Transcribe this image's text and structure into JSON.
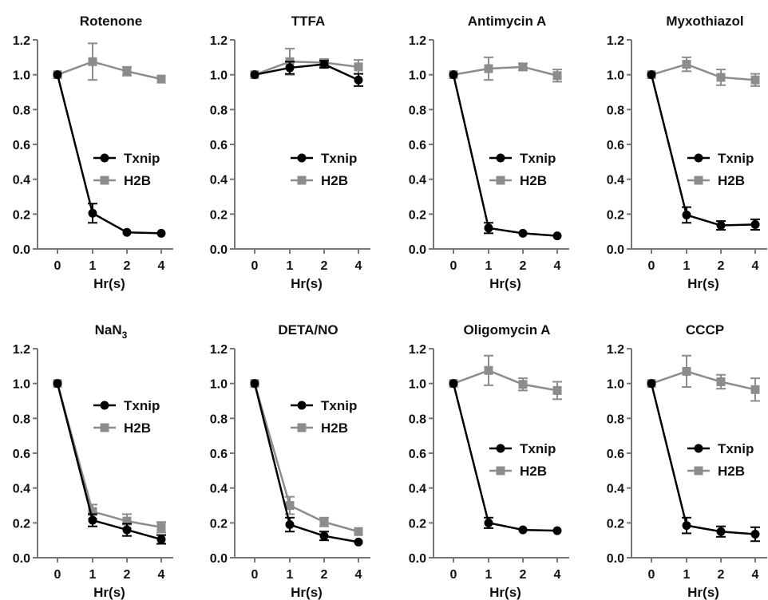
{
  "colors": {
    "txnip": "#000000",
    "h2b": "#8c8c8c",
    "axis": "#777777",
    "text": "#111111"
  },
  "chart_data": [
    {
      "type": "line",
      "title": "Rotenone",
      "title_sub": "",
      "categories": [
        "0",
        "1",
        "2",
        "4"
      ],
      "xlabel": "Hr(s)",
      "ylabel": "",
      "ylim": [
        0,
        1.2
      ],
      "yticks": [
        "0.0",
        "0.2",
        "0.4",
        "0.6",
        "0.8",
        "1.0",
        "1.2"
      ],
      "legend": "middle-right",
      "series": [
        {
          "name": "Txnip",
          "color": "#000000",
          "marker": "circle",
          "values": [
            1.0,
            0.205,
            0.095,
            0.09
          ],
          "errors": [
            0,
            0.055,
            0,
            0
          ]
        },
        {
          "name": "H2B",
          "color": "#8c8c8c",
          "marker": "square",
          "values": [
            1.0,
            1.075,
            1.02,
            0.975
          ],
          "errors": [
            0,
            0.105,
            0.025,
            0
          ]
        }
      ]
    },
    {
      "type": "line",
      "title": "TTFA",
      "title_sub": "",
      "categories": [
        "0",
        "1",
        "2",
        "4"
      ],
      "xlabel": "Hr(s)",
      "ylabel": "",
      "ylim": [
        0,
        1.2
      ],
      "yticks": [
        "0.0",
        "0.2",
        "0.4",
        "0.6",
        "0.8",
        "1.0",
        "1.2"
      ],
      "legend": "middle-right",
      "series": [
        {
          "name": "Txnip",
          "color": "#000000",
          "marker": "circle",
          "values": [
            1.0,
            1.04,
            1.06,
            0.97
          ],
          "errors": [
            0,
            0.035,
            0.02,
            0.035
          ]
        },
        {
          "name": "H2B",
          "color": "#8c8c8c",
          "marker": "square",
          "values": [
            1.0,
            1.075,
            1.07,
            1.045
          ],
          "errors": [
            0,
            0.075,
            0.02,
            0.04
          ]
        }
      ]
    },
    {
      "type": "line",
      "title": "Antimycin A",
      "title_sub": "",
      "categories": [
        "0",
        "1",
        "2",
        "4"
      ],
      "xlabel": "Hr(s)",
      "ylabel": "",
      "ylim": [
        0,
        1.2
      ],
      "yticks": [
        "0.0",
        "0.2",
        "0.4",
        "0.6",
        "0.8",
        "1.0",
        "1.2"
      ],
      "legend": "middle-right",
      "series": [
        {
          "name": "Txnip",
          "color": "#000000",
          "marker": "circle",
          "values": [
            1.0,
            0.12,
            0.09,
            0.075
          ],
          "errors": [
            0,
            0.03,
            0,
            0
          ]
        },
        {
          "name": "H2B",
          "color": "#8c8c8c",
          "marker": "square",
          "values": [
            1.0,
            1.035,
            1.045,
            0.995
          ],
          "errors": [
            0,
            0.065,
            0.02,
            0.035
          ]
        }
      ]
    },
    {
      "type": "line",
      "title": "Myxothiazol",
      "title_sub": "",
      "categories": [
        "0",
        "1",
        "2",
        "4"
      ],
      "xlabel": "Hr(s)",
      "ylabel": "",
      "ylim": [
        0,
        1.2
      ],
      "yticks": [
        "0.0",
        "0.2",
        "0.4",
        "0.6",
        "0.8",
        "1.0",
        "1.2"
      ],
      "legend": "middle-right",
      "series": [
        {
          "name": "Txnip",
          "color": "#000000",
          "marker": "circle",
          "values": [
            1.0,
            0.195,
            0.135,
            0.14
          ],
          "errors": [
            0,
            0.045,
            0.025,
            0.03
          ]
        },
        {
          "name": "H2B",
          "color": "#8c8c8c",
          "marker": "square",
          "values": [
            1.0,
            1.06,
            0.985,
            0.97
          ],
          "errors": [
            0,
            0.04,
            0.045,
            0.035
          ]
        }
      ]
    },
    {
      "type": "line",
      "title": "NaN",
      "title_sub": "3",
      "categories": [
        "0",
        "1",
        "2",
        "4"
      ],
      "xlabel": "Hr(s)",
      "ylabel": "",
      "ylim": [
        0,
        1.2
      ],
      "yticks": [
        "0.0",
        "0.2",
        "0.4",
        "0.6",
        "0.8",
        "1.0",
        "1.2"
      ],
      "legend": "upper-right",
      "series": [
        {
          "name": "Txnip",
          "color": "#000000",
          "marker": "circle",
          "values": [
            1.0,
            0.215,
            0.16,
            0.105
          ],
          "errors": [
            0,
            0.035,
            0.035,
            0.025
          ]
        },
        {
          "name": "H2B",
          "color": "#8c8c8c",
          "marker": "square",
          "values": [
            1.0,
            0.265,
            0.21,
            0.175
          ],
          "errors": [
            0,
            0.04,
            0.04,
            0.03
          ]
        }
      ]
    },
    {
      "type": "line",
      "title": "DETA/NO",
      "title_sub": "",
      "categories": [
        "0",
        "1",
        "2",
        "4"
      ],
      "xlabel": "Hr(s)",
      "ylabel": "",
      "ylim": [
        0,
        1.2
      ],
      "yticks": [
        "0.0",
        "0.2",
        "0.4",
        "0.6",
        "0.8",
        "1.0",
        "1.2"
      ],
      "legend": "upper-right",
      "series": [
        {
          "name": "Txnip",
          "color": "#000000",
          "marker": "circle",
          "values": [
            1.0,
            0.19,
            0.125,
            0.09
          ],
          "errors": [
            0,
            0.04,
            0.025,
            0
          ]
        },
        {
          "name": "H2B",
          "color": "#8c8c8c",
          "marker": "square",
          "values": [
            1.0,
            0.3,
            0.205,
            0.15
          ],
          "errors": [
            0,
            0.05,
            0.025,
            0
          ]
        }
      ]
    },
    {
      "type": "line",
      "title": "Oligomycin A",
      "title_sub": "",
      "categories": [
        "0",
        "1",
        "2",
        "4"
      ],
      "xlabel": "Hr(s)",
      "ylabel": "",
      "ylim": [
        0,
        1.2
      ],
      "yticks": [
        "0.0",
        "0.2",
        "0.4",
        "0.6",
        "0.8",
        "1.0",
        "1.2"
      ],
      "legend": "lower-right",
      "series": [
        {
          "name": "Txnip",
          "color": "#000000",
          "marker": "circle",
          "values": [
            1.0,
            0.2,
            0.16,
            0.155
          ],
          "errors": [
            0,
            0.03,
            0,
            0
          ]
        },
        {
          "name": "H2B",
          "color": "#8c8c8c",
          "marker": "square",
          "values": [
            1.0,
            1.075,
            0.995,
            0.96
          ],
          "errors": [
            0,
            0.085,
            0.035,
            0.05
          ]
        }
      ]
    },
    {
      "type": "line",
      "title": "CCCP",
      "title_sub": "",
      "categories": [
        "0",
        "1",
        "2",
        "4"
      ],
      "xlabel": "Hr(s)",
      "ylabel": "",
      "ylim": [
        0,
        1.2
      ],
      "yticks": [
        "0.0",
        "0.2",
        "0.4",
        "0.6",
        "0.8",
        "1.0",
        "1.2"
      ],
      "legend": "lower-right",
      "series": [
        {
          "name": "Txnip",
          "color": "#000000",
          "marker": "circle",
          "values": [
            1.0,
            0.185,
            0.15,
            0.135
          ],
          "errors": [
            0,
            0.045,
            0.03,
            0.04
          ]
        },
        {
          "name": "H2B",
          "color": "#8c8c8c",
          "marker": "square",
          "values": [
            1.0,
            1.07,
            1.01,
            0.965
          ],
          "errors": [
            0,
            0.09,
            0.04,
            0.065
          ]
        }
      ]
    }
  ]
}
